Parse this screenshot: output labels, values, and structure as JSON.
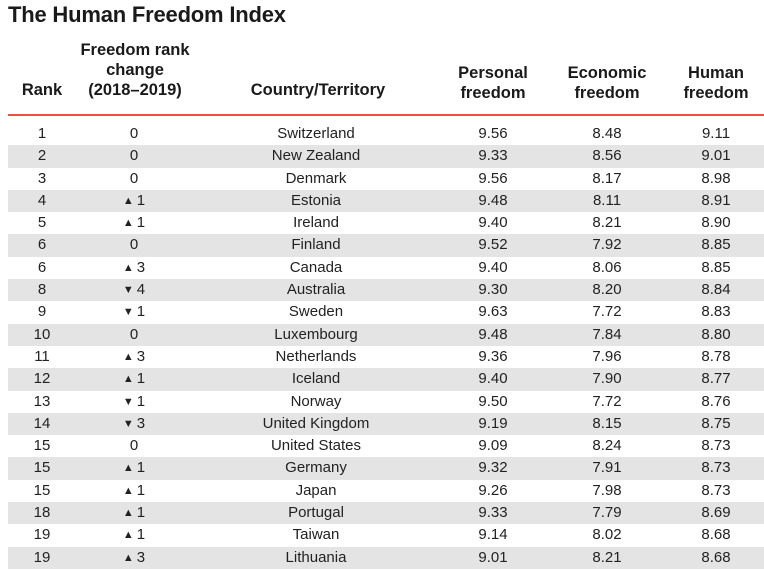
{
  "title": "The Human Freedom Index",
  "headers": {
    "rank": "Rank",
    "change": [
      "Freedom rank",
      "change",
      "(2018–2019)"
    ],
    "country": "Country/Territory",
    "personal": [
      "Personal",
      "freedom"
    ],
    "economic": [
      "Economic",
      "freedom"
    ],
    "human": [
      "Human",
      "freedom"
    ]
  },
  "rows": [
    {
      "rank": "1",
      "dir": "",
      "change": "0",
      "country": "Switzerland",
      "personal": "9.56",
      "economic": "8.48",
      "human": "9.11"
    },
    {
      "rank": "2",
      "dir": "",
      "change": "0",
      "country": "New Zealand",
      "personal": "9.33",
      "economic": "8.56",
      "human": "9.01"
    },
    {
      "rank": "3",
      "dir": "",
      "change": "0",
      "country": "Denmark",
      "personal": "9.56",
      "economic": "8.17",
      "human": "8.98"
    },
    {
      "rank": "4",
      "dir": "up",
      "change": "1",
      "country": "Estonia",
      "personal": "9.48",
      "economic": "8.11",
      "human": "8.91"
    },
    {
      "rank": "5",
      "dir": "up",
      "change": "1",
      "country": "Ireland",
      "personal": "9.40",
      "economic": "8.21",
      "human": "8.90"
    },
    {
      "rank": "6",
      "dir": "",
      "change": "0",
      "country": "Finland",
      "personal": "9.52",
      "economic": "7.92",
      "human": "8.85"
    },
    {
      "rank": "6",
      "dir": "up",
      "change": "3",
      "country": "Canada",
      "personal": "9.40",
      "economic": "8.06",
      "human": "8.85"
    },
    {
      "rank": "8",
      "dir": "down",
      "change": "4",
      "country": "Australia",
      "personal": "9.30",
      "economic": "8.20",
      "human": "8.84"
    },
    {
      "rank": "9",
      "dir": "down",
      "change": "1",
      "country": "Sweden",
      "personal": "9.63",
      "economic": "7.72",
      "human": "8.83"
    },
    {
      "rank": "10",
      "dir": "",
      "change": "0",
      "country": "Luxembourg",
      "personal": "9.48",
      "economic": "7.84",
      "human": "8.80"
    },
    {
      "rank": "11",
      "dir": "up",
      "change": "3",
      "country": "Netherlands",
      "personal": "9.36",
      "economic": "7.96",
      "human": "8.78"
    },
    {
      "rank": "12",
      "dir": "up",
      "change": "1",
      "country": "Iceland",
      "personal": "9.40",
      "economic": "7.90",
      "human": "8.77"
    },
    {
      "rank": "13",
      "dir": "down",
      "change": "1",
      "country": "Norway",
      "personal": "9.50",
      "economic": "7.72",
      "human": "8.76"
    },
    {
      "rank": "14",
      "dir": "down",
      "change": "3",
      "country": "United Kingdom",
      "personal": "9.19",
      "economic": "8.15",
      "human": "8.75"
    },
    {
      "rank": "15",
      "dir": "",
      "change": "0",
      "country": "United States",
      "personal": "9.09",
      "economic": "8.24",
      "human": "8.73"
    },
    {
      "rank": "15",
      "dir": "up",
      "change": "1",
      "country": "Germany",
      "personal": "9.32",
      "economic": "7.91",
      "human": "8.73"
    },
    {
      "rank": "15",
      "dir": "up",
      "change": "1",
      "country": "Japan",
      "personal": "9.26",
      "economic": "7.98",
      "human": "8.73"
    },
    {
      "rank": "18",
      "dir": "up",
      "change": "1",
      "country": "Portugal",
      "personal": "9.33",
      "economic": "7.79",
      "human": "8.69"
    },
    {
      "rank": "19",
      "dir": "up",
      "change": "1",
      "country": "Taiwan",
      "personal": "9.14",
      "economic": "8.02",
      "human": "8.68"
    },
    {
      "rank": "19",
      "dir": "up",
      "change": "3",
      "country": "Lithuania",
      "personal": "9.01",
      "economic": "8.21",
      "human": "8.68"
    }
  ],
  "icons": {
    "up": "triangle-up-icon",
    "down": "triangle-down-icon"
  },
  "colors": {
    "rule": "#e8543f",
    "stripe": "#e4e4e4"
  }
}
